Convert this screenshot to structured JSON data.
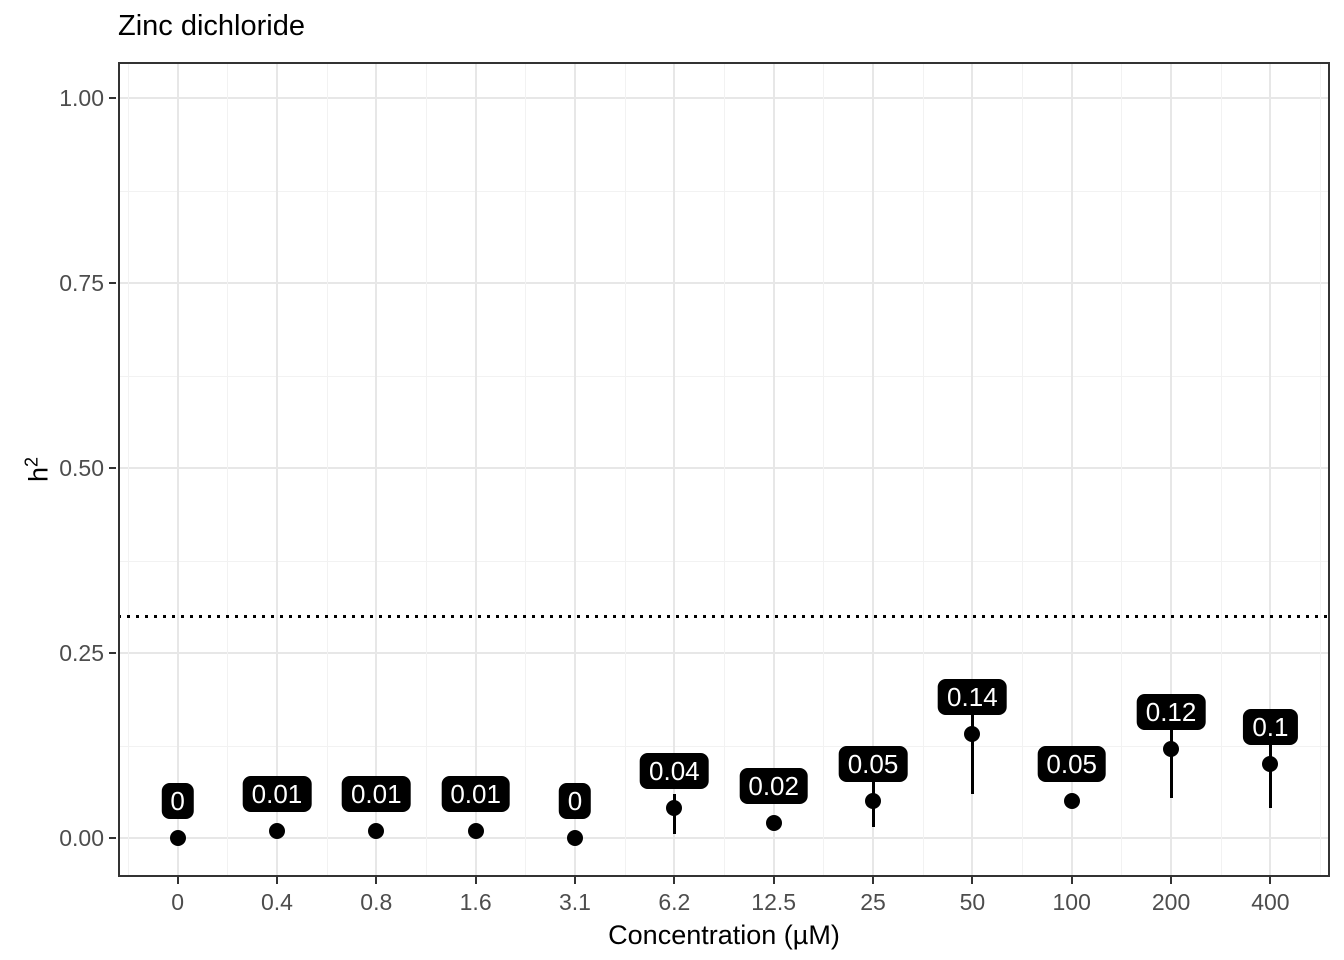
{
  "chart_data": {
    "type": "scatter",
    "title": "Zinc dichloride",
    "xlabel": "Concentration (µM)",
    "ylabel": "h²",
    "ylabel_base": "h",
    "ylabel_sup": "2",
    "categories": [
      "0",
      "0.4",
      "0.8",
      "1.6",
      "3.1",
      "6.2",
      "12.5",
      "25",
      "50",
      "100",
      "200",
      "400"
    ],
    "values": [
      0,
      0.01,
      0.01,
      0.01,
      0,
      0.04,
      0.02,
      0.05,
      0.14,
      0.05,
      0.12,
      0.1
    ],
    "point_labels": [
      "0",
      "0.01",
      "0.01",
      "0.01",
      "0",
      "0.04",
      "0.02",
      "0.05",
      "0.14",
      "0.05",
      "0.12",
      "0.1"
    ],
    "error_low": [
      null,
      null,
      null,
      null,
      null,
      0.005,
      null,
      0.015,
      0.06,
      0.018,
      0.054,
      0.04
    ],
    "error_high": [
      null,
      null,
      null,
      null,
      null,
      0.06,
      null,
      0.08,
      0.17,
      0.018,
      0.16,
      0.15
    ],
    "threshold_line": 0.3,
    "y_ticks": [
      {
        "value": 0.0,
        "label": "0.00"
      },
      {
        "value": 0.25,
        "label": "0.25"
      },
      {
        "value": 0.5,
        "label": "0.50"
      },
      {
        "value": 0.75,
        "label": "0.75"
      },
      {
        "value": 1.0,
        "label": "1.00"
      }
    ],
    "y_minor_ticks": [
      0.125,
      0.375,
      0.625,
      0.875
    ],
    "ylim": [
      0,
      1
    ],
    "grid": true,
    "legend": "none",
    "colors": {
      "point": "#000000",
      "label_bg": "#000000",
      "label_text": "#ffffff",
      "grid_major": "#e7e7e7",
      "grid_minor": "#f2f2f2",
      "axis_text": "#4d4d4d",
      "panel_border": "#333333",
      "threshold": "#000000"
    }
  }
}
